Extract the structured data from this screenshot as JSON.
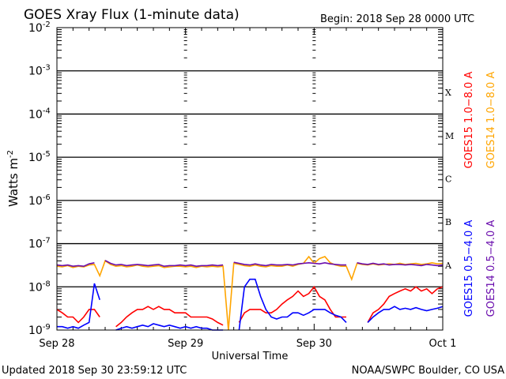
{
  "header": {
    "title": "GOES Xray Flux (1-minute data)",
    "begin": "Begin:  2018 Sep 28 0000 UTC"
  },
  "footer": {
    "updated": "Updated 2018 Sep 30 23:59:12 UTC",
    "credit": "NOAA/SWPC Boulder, CO USA"
  },
  "chart_data": {
    "type": "line",
    "title": "GOES Xray Flux (1-minute data)",
    "xlabel": "Universal Time",
    "ylabel": "Watts m-2",
    "ylabel_base": "Watts m",
    "ylabel_exp": "-2",
    "y_scale": "log",
    "ylim": [
      1e-09,
      0.01
    ],
    "y_ticks": [
      {
        "base": "10",
        "exp": "-2",
        "value": 0.01
      },
      {
        "base": "10",
        "exp": "-3",
        "value": 0.001
      },
      {
        "base": "10",
        "exp": "-4",
        "value": 0.0001
      },
      {
        "base": "10",
        "exp": "-5",
        "value": 1e-05
      },
      {
        "base": "10",
        "exp": "-6",
        "value": 1e-06
      },
      {
        "base": "10",
        "exp": "-7",
        "value": 1e-07
      },
      {
        "base": "10",
        "exp": "-8",
        "value": 1e-08
      },
      {
        "base": "10",
        "exp": "-9",
        "value": 1e-09
      }
    ],
    "x_unit": "hours since 2018 Sep 28 0000 UTC",
    "xlim": [
      0,
      72
    ],
    "x_ticks": [
      {
        "label": "Sep 28",
        "hour": 0
      },
      {
        "label": "Sep 29",
        "hour": 24
      },
      {
        "label": "Sep 30",
        "hour": 48
      },
      {
        "label": "Oct 1",
        "hour": 72
      }
    ],
    "flare_classes": [
      {
        "label": "X",
        "value": 0.0001
      },
      {
        "label": "M",
        "value": 1e-05
      },
      {
        "label": "C",
        "value": 1e-06
      },
      {
        "label": "B",
        "value": 1e-07
      },
      {
        "label": "A",
        "value": 1e-08
      }
    ],
    "grid": "horizontal lines at each decade",
    "legend_placement": "right, vertical text",
    "series": [
      {
        "name": "GOES15 1.0-8.0 A",
        "color": "#ff0000",
        "values": [
          3e-09,
          2.5e-09,
          2e-09,
          2e-09,
          1.5e-09,
          2e-09,
          3e-09,
          3e-09,
          2e-09,
          null,
          null,
          1.2e-09,
          1.5e-09,
          2e-09,
          2.5e-09,
          3e-09,
          3e-09,
          3.5e-09,
          3e-09,
          3.5e-09,
          3e-09,
          3e-09,
          2.5e-09,
          2.5e-09,
          2.5e-09,
          2e-09,
          2e-09,
          2e-09,
          2e-09,
          1.8e-09,
          1.5e-09,
          1.3e-09,
          null,
          null,
          1.5e-09,
          2.5e-09,
          3e-09,
          3e-09,
          3e-09,
          2.5e-09,
          2.5e-09,
          3e-09,
          4e-09,
          5e-09,
          6e-09,
          8e-09,
          6e-09,
          7e-09,
          1e-08,
          6e-09,
          5e-09,
          3e-09,
          2e-09,
          2e-09,
          2e-09,
          null,
          null,
          null,
          1.5e-09,
          2.5e-09,
          3e-09,
          4e-09,
          6e-09,
          7e-09,
          8e-09,
          9e-09,
          8e-09,
          1e-08,
          8e-09,
          9e-09,
          7e-09,
          9e-09,
          1e-08
        ]
      },
      {
        "name": "GOES14 1.0-8.0 A",
        "color": "#ffa500",
        "values": [
          3e-08,
          2.9e-08,
          3.1e-08,
          2.8e-08,
          3e-08,
          2.9e-08,
          3.2e-08,
          3.3e-08,
          1.8e-08,
          4e-08,
          3.3e-08,
          3e-08,
          3.1e-08,
          2.9e-08,
          3e-08,
          3.2e-08,
          3e-08,
          2.9e-08,
          3e-08,
          3.1e-08,
          2.8e-08,
          2.9e-08,
          3e-08,
          3e-08,
          2.9e-08,
          3e-08,
          2.8e-08,
          3e-08,
          2.9e-08,
          3e-08,
          2.9e-08,
          3e-08,
          1e-09,
          3.5e-08,
          3.3e-08,
          3.1e-08,
          3e-08,
          3.2e-08,
          3e-08,
          2.9e-08,
          3.1e-08,
          3e-08,
          3e-08,
          3.2e-08,
          3e-08,
          3.3e-08,
          3.5e-08,
          5e-08,
          3.5e-08,
          4.5e-08,
          5e-08,
          3.6e-08,
          3.2e-08,
          3e-08,
          3e-08,
          1.5e-08,
          3.5e-08,
          3.3e-08,
          3.2e-08,
          3.4e-08,
          3.2e-08,
          3.3e-08,
          3.4e-08,
          3.3e-08,
          3.5e-08,
          3.3e-08,
          3.4e-08,
          3.5e-08,
          3.3e-08,
          3.4e-08,
          3.6e-08,
          3.4e-08,
          3.5e-08
        ]
      },
      {
        "name": "GOES15 0.5-4.0 A",
        "color": "#0000ff",
        "values": [
          1.2e-09,
          1.2e-09,
          1.1e-09,
          1.2e-09,
          1.1e-09,
          1.3e-09,
          1.5e-09,
          1.2e-08,
          5e-09,
          null,
          null,
          1e-09,
          1.1e-09,
          1.2e-09,
          1.1e-09,
          1.2e-09,
          1.3e-09,
          1.2e-09,
          1.4e-09,
          1.3e-09,
          1.2e-09,
          1.3e-09,
          1.2e-09,
          1.1e-09,
          1.2e-09,
          1.1e-09,
          1.2e-09,
          1.1e-09,
          1.1e-09,
          1e-09,
          1e-09,
          1e-09,
          null,
          null,
          1e-09,
          1e-08,
          1.5e-08,
          1.5e-08,
          6e-09,
          3e-09,
          2e-09,
          1.8e-09,
          2e-09,
          2e-09,
          2.5e-09,
          2.5e-09,
          2.2e-09,
          2.5e-09,
          3e-09,
          3e-09,
          3e-09,
          2.5e-09,
          2.2e-09,
          2e-09,
          1.5e-09,
          null,
          null,
          null,
          1.5e-09,
          2e-09,
          2.5e-09,
          3e-09,
          3e-09,
          3.5e-09,
          3e-09,
          3.2e-09,
          3e-09,
          3.3e-09,
          3e-09,
          2.8e-09,
          3e-09,
          3.2e-09,
          3.5e-09
        ]
      },
      {
        "name": "GOES14 0.5-4.0 A",
        "color": "#6a0dad",
        "values": [
          3.2e-08,
          3.1e-08,
          3.2e-08,
          3e-08,
          3.1e-08,
          3e-08,
          3.4e-08,
          3.6e-08,
          null,
          4.1e-08,
          3.5e-08,
          3.2e-08,
          3.3e-08,
          3.1e-08,
          3.2e-08,
          3.3e-08,
          3.2e-08,
          3.1e-08,
          3.2e-08,
          3.3e-08,
          3e-08,
          3.1e-08,
          3.1e-08,
          3.2e-08,
          3.1e-08,
          3.2e-08,
          3e-08,
          3.1e-08,
          3.1e-08,
          3.2e-08,
          3.1e-08,
          3.2e-08,
          null,
          3.7e-08,
          3.5e-08,
          3.3e-08,
          3.2e-08,
          3.4e-08,
          3.2e-08,
          3.1e-08,
          3.3e-08,
          3.2e-08,
          3.2e-08,
          3.3e-08,
          3.2e-08,
          3.4e-08,
          3.5e-08,
          3.6e-08,
          3.5e-08,
          3.4e-08,
          3.6e-08,
          3.4e-08,
          3.3e-08,
          3.2e-08,
          3.2e-08,
          null,
          3.6e-08,
          3.4e-08,
          3.3e-08,
          3.5e-08,
          3.3e-08,
          3.4e-08,
          3.2e-08,
          3.3e-08,
          3.3e-08,
          3.2e-08,
          3.3e-08,
          3.2e-08,
          3.1e-08,
          3.3e-08,
          3.2e-08,
          3.1e-08,
          3.2e-08
        ]
      }
    ]
  }
}
